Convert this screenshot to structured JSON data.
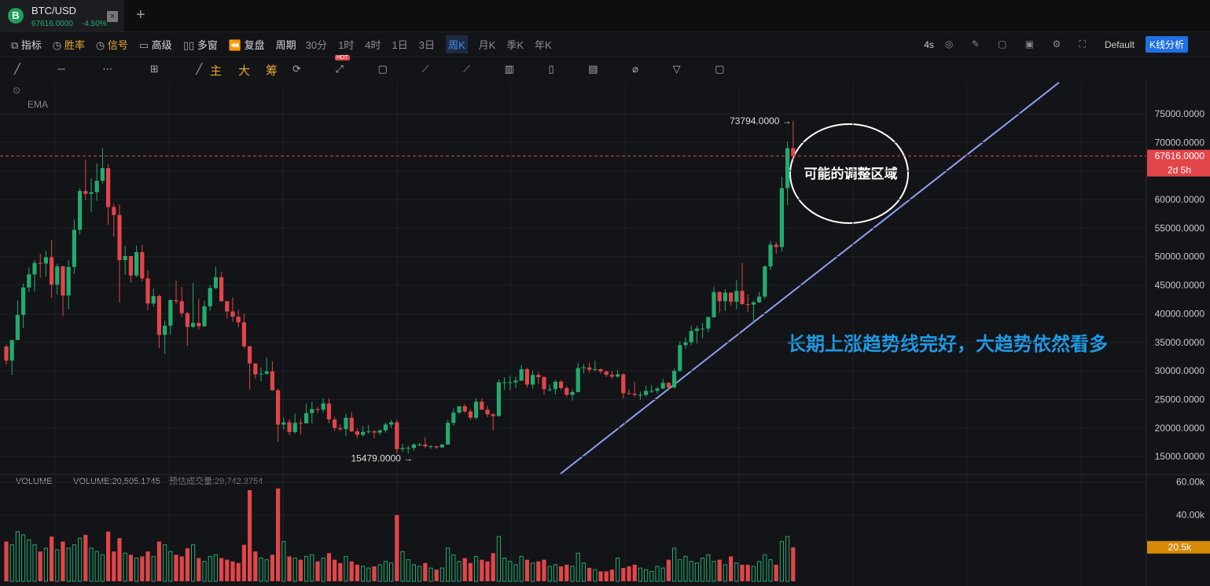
{
  "tab": {
    "symbol": "BTC/USD",
    "price": "67616.0000",
    "change": "-4.50%"
  },
  "toolbar": {
    "items": [
      "指标",
      "胜率",
      "信号",
      "高级",
      "多窗",
      "复盘",
      "周期"
    ],
    "periods": [
      "30分",
      "1时",
      "4时",
      "1日",
      "3日",
      "周K",
      "月K",
      "季K",
      "年K"
    ],
    "refresh": "4s",
    "template": "Default",
    "analysis": "K线分析"
  },
  "drawing_toolbar": {
    "tools": [
      "主",
      "大",
      "筹"
    ],
    "badge": "HOT"
  },
  "indicator": "EMA",
  "annotations": {
    "zone": "可能的调整区域",
    "trend": "长期上涨趋势线完好，大趋势依然看多"
  },
  "chart_data": {
    "type": "candlestick",
    "candles": [
      [
        34250,
        34600,
        31100,
        31800
      ],
      [
        31800,
        35400,
        29300,
        35400
      ],
      [
        35400,
        42300,
        35400,
        39800
      ],
      [
        39800,
        45300,
        37500,
        44600
      ],
      [
        44600,
        48100,
        43800,
        46900
      ],
      [
        46900,
        49400,
        43900,
        48900
      ],
      [
        48900,
        50500,
        46300,
        48800
      ],
      [
        48800,
        51000,
        46500,
        49900
      ],
      [
        49900,
        52900,
        42800,
        45100
      ],
      [
        45100,
        48800,
        43400,
        48300
      ],
      [
        48300,
        48400,
        39600,
        43200
      ],
      [
        43200,
        49400,
        40800,
        48200
      ],
      [
        48200,
        56500,
        47000,
        54700
      ],
      [
        54700,
        62000,
        53900,
        61500
      ],
      [
        61500,
        67000,
        59900,
        61000
      ],
      [
        61000,
        63700,
        57800,
        61300
      ],
      [
        61300,
        66300,
        59800,
        63300
      ],
      [
        63300,
        69000,
        62800,
        65500
      ],
      [
        65500,
        66200,
        55600,
        58700
      ],
      [
        58700,
        59300,
        53500,
        57300
      ],
      [
        57300,
        59100,
        42000,
        49400
      ],
      [
        49400,
        51900,
        46800,
        50100
      ],
      [
        50100,
        50100,
        45500,
        46700
      ],
      [
        46700,
        51900,
        46400,
        50800
      ],
      [
        50800,
        52000,
        45700,
        46200
      ],
      [
        46200,
        47600,
        40600,
        41800
      ],
      [
        41800,
        44400,
        41200,
        43100
      ],
      [
        43100,
        43400,
        34000,
        36300
      ],
      [
        36300,
        38800,
        33000,
        37900
      ],
      [
        37900,
        42500,
        36300,
        42400
      ],
      [
        42400,
        45800,
        41700,
        42200
      ],
      [
        42200,
        44700,
        39500,
        40100
      ],
      [
        40100,
        40300,
        34400,
        37700
      ],
      [
        37700,
        45400,
        37500,
        38400
      ],
      [
        38400,
        42600,
        37200,
        37800
      ],
      [
        37800,
        42300,
        37800,
        41300
      ],
      [
        41300,
        45000,
        40500,
        44500
      ],
      [
        44500,
        48200,
        44300,
        46400
      ],
      [
        46400,
        47300,
        42100,
        42200
      ],
      [
        42200,
        42200,
        39200,
        40400
      ],
      [
        40400,
        42900,
        38600,
        39500
      ],
      [
        39500,
        40700,
        37600,
        38500
      ],
      [
        38500,
        40000,
        34000,
        34300
      ],
      [
        34300,
        34400,
        26700,
        31300
      ],
      [
        31300,
        31300,
        28600,
        29400
      ],
      [
        29400,
        30600,
        28200,
        29500
      ],
      [
        29500,
        32300,
        29300,
        29900
      ],
      [
        29900,
        31700,
        26500,
        26600
      ],
      [
        26600,
        26900,
        17600,
        20600
      ],
      [
        20600,
        21800,
        19700,
        21000
      ],
      [
        21000,
        21500,
        18800,
        19300
      ],
      [
        19300,
        22500,
        19000,
        20900
      ],
      [
        20900,
        21600,
        18900,
        20800
      ],
      [
        20800,
        24300,
        20800,
        22600
      ],
      [
        22600,
        24600,
        20800,
        23300
      ],
      [
        23300,
        23700,
        22600,
        23200
      ],
      [
        23200,
        25200,
        22700,
        24300
      ],
      [
        24300,
        25200,
        20800,
        21500
      ],
      [
        21500,
        22000,
        19500,
        20000
      ],
      [
        20000,
        20600,
        19500,
        19800
      ],
      [
        19800,
        22500,
        18600,
        21800
      ],
      [
        21800,
        22800,
        19300,
        19400
      ],
      [
        19400,
        19900,
        18200,
        18800
      ],
      [
        18800,
        20300,
        18500,
        19300
      ],
      [
        19300,
        20500,
        19000,
        19400
      ],
      [
        19400,
        19700,
        18200,
        19200
      ],
      [
        19200,
        19700,
        18700,
        19600
      ],
      [
        19600,
        21000,
        19200,
        20600
      ],
      [
        20600,
        21400,
        20000,
        21000
      ],
      [
        21000,
        21500,
        15600,
        16300
      ],
      [
        16300,
        17200,
        15800,
        16500
      ],
      [
        16500,
        16900,
        15479,
        16500
      ],
      [
        16500,
        17300,
        16000,
        17100
      ],
      [
        17100,
        17400,
        16800,
        17100
      ],
      [
        17100,
        18400,
        16500,
        16800
      ],
      [
        16800,
        17000,
        16400,
        16800
      ],
      [
        16800,
        16900,
        16300,
        16600
      ],
      [
        16600,
        17200,
        16500,
        17100
      ],
      [
        17100,
        21400,
        17100,
        20900
      ],
      [
        20900,
        23400,
        20400,
        22700
      ],
      [
        22700,
        23800,
        22400,
        23800
      ],
      [
        23800,
        24200,
        22600,
        22900
      ],
      [
        22900,
        23300,
        21400,
        21800
      ],
      [
        21800,
        25200,
        21500,
        24600
      ],
      [
        24600,
        25200,
        23200,
        23200
      ],
      [
        23200,
        23900,
        21900,
        22400
      ],
      [
        22400,
        22600,
        19600,
        22100
      ],
      [
        22100,
        28500,
        22000,
        28000
      ],
      [
        28000,
        28900,
        26700,
        28000
      ],
      [
        28000,
        29200,
        26600,
        28000
      ],
      [
        28000,
        29000,
        27000,
        28300
      ],
      [
        28300,
        31000,
        28200,
        30300
      ],
      [
        30300,
        30500,
        27100,
        27600
      ],
      [
        27600,
        30000,
        26900,
        29300
      ],
      [
        29300,
        29800,
        27700,
        28900
      ],
      [
        28900,
        29100,
        25800,
        26800
      ],
      [
        26800,
        27600,
        26400,
        26800
      ],
      [
        26800,
        28400,
        25900,
        28100
      ],
      [
        28100,
        28400,
        26600,
        27000
      ],
      [
        27000,
        27400,
        25400,
        25800
      ],
      [
        25800,
        26800,
        24800,
        26300
      ],
      [
        26300,
        31400,
        26200,
        30500
      ],
      [
        30500,
        31200,
        29600,
        30600
      ],
      [
        30600,
        31500,
        29700,
        30200
      ],
      [
        30200,
        31800,
        29900,
        30300
      ],
      [
        30300,
        30400,
        29500,
        29900
      ],
      [
        29900,
        30000,
        28900,
        29300
      ],
      [
        29300,
        30000,
        28600,
        29000
      ],
      [
        29000,
        30200,
        28800,
        29400
      ],
      [
        29400,
        29600,
        25200,
        26100
      ],
      [
        26100,
        26800,
        25800,
        26000
      ],
      [
        26000,
        28100,
        25400,
        25800
      ],
      [
        25800,
        26400,
        24900,
        25800
      ],
      [
        25800,
        27400,
        25500,
        26500
      ],
      [
        26500,
        27500,
        26100,
        26500
      ],
      [
        26500,
        27200,
        26000,
        26900
      ],
      [
        26900,
        28600,
        26800,
        27900
      ],
      [
        27900,
        28000,
        26600,
        27100
      ],
      [
        27100,
        30400,
        26900,
        30000
      ],
      [
        30000,
        35200,
        29800,
        34500
      ],
      [
        34500,
        35900,
        33900,
        35000
      ],
      [
        35000,
        37900,
        34500,
        37000
      ],
      [
        37000,
        37900,
        34800,
        37400
      ],
      [
        37400,
        38400,
        35700,
        37400
      ],
      [
        37400,
        39500,
        36800,
        39400
      ],
      [
        39400,
        44700,
        39300,
        43800
      ],
      [
        43800,
        44000,
        40200,
        42200
      ],
      [
        42200,
        44300,
        40500,
        43700
      ],
      [
        43700,
        43800,
        41400,
        42100
      ],
      [
        42100,
        45900,
        40800,
        44000
      ],
      [
        44000,
        48900,
        41500,
        41700
      ],
      [
        41700,
        43400,
        40300,
        41600
      ],
      [
        41600,
        42300,
        38500,
        42000
      ],
      [
        42000,
        43800,
        41900,
        43000
      ],
      [
        43000,
        48500,
        42600,
        48300
      ],
      [
        48300,
        52800,
        47700,
        52100
      ],
      [
        52100,
        52600,
        50500,
        51700
      ],
      [
        51700,
        64000,
        50900,
        62000
      ],
      [
        62000,
        70100,
        59000,
        69000
      ],
      [
        69000,
        73794,
        66600,
        67616
      ]
    ],
    "up_color": "#22ab6f",
    "down_color": "#e2454a",
    "ylim": [
      12000,
      80500
    ],
    "yticks": [
      {
        "value": 15000,
        "label": "15000.0000"
      },
      {
        "value": 20000,
        "label": "20000.0000"
      },
      {
        "value": 25000,
        "label": "25000.0000"
      },
      {
        "value": 30000,
        "label": "30000.0000"
      },
      {
        "value": 35000,
        "label": "35000.0000"
      },
      {
        "value": 40000,
        "label": "40000.0000"
      },
      {
        "value": 45000,
        "label": "45000.0000"
      },
      {
        "value": 50000,
        "label": "50000.0000"
      },
      {
        "value": 55000,
        "label": "55000.0000"
      },
      {
        "value": 60000,
        "label": "60000.0000"
      },
      {
        "value": 65000,
        "label": "65000.0000"
      },
      {
        "value": 70000,
        "label": "70000.0000"
      },
      {
        "value": 75000,
        "label": "75000.0000"
      }
    ],
    "grid": true,
    "max_label": "73794.0000 →",
    "min_label": "15479.0000 →",
    "last_price": {
      "value": 67616,
      "label": "67616.0000"
    },
    "countdown": "2d 5h",
    "volume": {
      "values": [
        24000,
        22000,
        30000,
        28000,
        25000,
        22000,
        18000,
        20000,
        27000,
        19000,
        24000,
        20000,
        22000,
        26000,
        28000,
        20000,
        18000,
        16000,
        30000,
        18000,
        26000,
        17000,
        16000,
        14000,
        15000,
        18000,
        15000,
        24000,
        22000,
        18000,
        16000,
        15000,
        20000,
        22000,
        14000,
        12000,
        15000,
        16000,
        14000,
        13000,
        12000,
        11000,
        22000,
        55000,
        18000,
        14000,
        13000,
        16000,
        56000,
        24000,
        15000,
        14000,
        13000,
        15000,
        16000,
        12000,
        14000,
        17000,
        13000,
        11000,
        15000,
        12000,
        10000,
        9000,
        8000,
        9000,
        10000,
        12000,
        11000,
        40000,
        18000,
        13000,
        10000,
        9000,
        11000,
        8000,
        7000,
        8000,
        20000,
        16000,
        12000,
        14000,
        11000,
        15000,
        13000,
        12000,
        17000,
        27000,
        14000,
        12000,
        10000,
        15000,
        13000,
        11000,
        12000,
        13000,
        9000,
        10000,
        9000,
        10000,
        9000,
        17000,
        11000,
        8000,
        7000,
        6000,
        6000,
        7000,
        14000,
        8000,
        9000,
        10000,
        8000,
        7000,
        6000,
        9000,
        8000,
        13000,
        20000,
        13000,
        15000,
        12000,
        11000,
        14000,
        16000,
        12000,
        13000,
        10000,
        15000,
        11000,
        10000,
        10000,
        9000,
        12000,
        16000,
        13000,
        10000,
        24000,
        27000,
        20505
      ],
      "ylim": [
        0,
        64000
      ],
      "yticks": [
        {
          "value": 40000,
          "label": "40.00k"
        },
        {
          "value": 60000,
          "label": "60.00k"
        }
      ],
      "legend": "VOLUME",
      "reading": "VOLUME:20,505.1745",
      "estimate": "预估成交量:29,742.3754",
      "last_label": {
        "value": 20505,
        "label": "20.5k"
      }
    }
  }
}
